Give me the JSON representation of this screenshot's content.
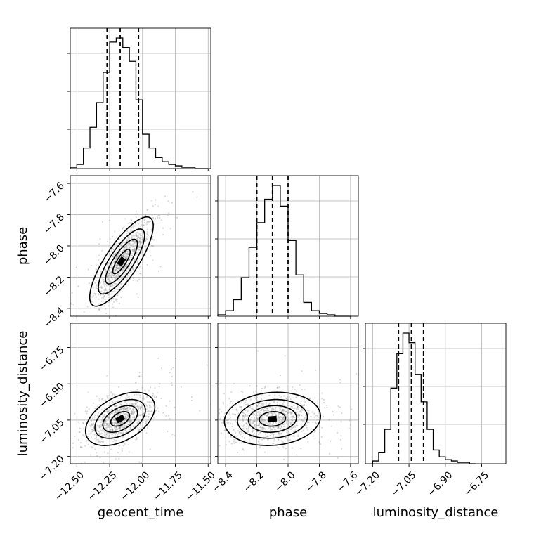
{
  "chart_data": {
    "type": "corner",
    "parameters": [
      "geocent_time",
      "phase",
      "luminosity_distance"
    ],
    "axis_labels": {
      "geocent_time": "geocent_time",
      "phase": "phase",
      "luminosity_distance": "luminosity_distance"
    },
    "ranges": {
      "geocent_time": [
        -12.55,
        -11.48
      ],
      "phase": [
        -8.45,
        -7.55
      ],
      "luminosity_distance": [
        -7.23,
        -6.65
      ]
    },
    "ticks": {
      "geocent_time": [
        "-12.50",
        "-12.25",
        "-12.00",
        "-11.75",
        "-11.50"
      ],
      "phase": [
        "-8.4",
        "-8.2",
        "-8.0",
        "-7.8",
        "-7.6"
      ],
      "luminosity_distance": [
        "-7.20",
        "-7.05",
        "-6.90",
        "-6.75"
      ]
    },
    "quantiles": {
      "geocent_time": [
        -12.27,
        -12.17,
        -12.03
      ],
      "phase": [
        -8.2,
        -8.1,
        -8.0
      ],
      "luminosity_distance": [
        -7.093,
        -7.04,
        -6.99
      ]
    },
    "histograms": {
      "geocent_time": {
        "bin_edges": [
          -12.55,
          -12.5,
          -12.45,
          -12.4,
          -12.35,
          -12.3,
          -12.25,
          -12.2,
          -12.15,
          -12.1,
          -12.05,
          -12.0,
          -11.95,
          -11.9,
          -11.85,
          -11.8,
          -11.75,
          -11.7,
          -11.65,
          -11.6,
          -11.55,
          -11.5
        ],
        "counts": [
          1,
          3,
          15,
          30,
          48,
          70,
          92,
          95,
          88,
          78,
          50,
          25,
          15,
          8,
          5,
          3,
          2,
          1,
          1,
          0,
          0
        ]
      },
      "phase": {
        "bin_edges": [
          -8.45,
          -8.4,
          -8.35,
          -8.3,
          -8.25,
          -8.2,
          -8.15,
          -8.1,
          -8.05,
          -8.0,
          -7.95,
          -7.9,
          -7.85,
          -7.8,
          -7.75,
          -7.7,
          -7.65,
          -7.6
        ],
        "counts": [
          1,
          4,
          12,
          28,
          50,
          68,
          85,
          95,
          80,
          55,
          30,
          10,
          4,
          2,
          1,
          0,
          0
        ]
      },
      "luminosity_distance": {
        "bin_edges": [
          -7.2,
          -7.175,
          -7.15,
          -7.125,
          -7.1,
          -7.075,
          -7.05,
          -7.025,
          -7.0,
          -6.975,
          -6.95,
          -6.925,
          -6.9,
          -6.875,
          -6.85,
          -6.825,
          -6.8,
          -6.775
        ],
        "counts": [
          2,
          8,
          25,
          55,
          80,
          95,
          88,
          65,
          45,
          25,
          10,
          5,
          3,
          2,
          1,
          1,
          0
        ]
      }
    },
    "scatter_2d": [
      {
        "x": "geocent_time",
        "y": "phase",
        "mean": [
          -12.16,
          -8.1
        ],
        "sd": [
          0.11,
          0.13
        ],
        "correlation": 0.8
      },
      {
        "x": "geocent_time",
        "y": "luminosity_distance",
        "mean": [
          -12.17,
          -7.045
        ],
        "sd": [
          0.12,
          0.05
        ],
        "correlation": 0.45
      },
      {
        "x": "phase",
        "y": "luminosity_distance",
        "mean": [
          -8.1,
          -7.045
        ],
        "sd": [
          0.14,
          0.05
        ],
        "correlation": 0.1
      }
    ],
    "grid": true
  }
}
